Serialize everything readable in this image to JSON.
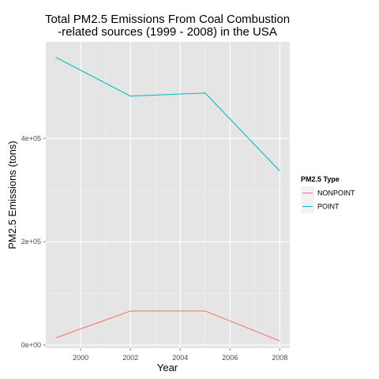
{
  "chart_data": {
    "type": "line",
    "title_lines": [
      "Total PM2.5 Emissions From Coal Combustion",
      "-related sources (1999 - 2008) in the USA"
    ],
    "xlabel": "Year",
    "ylabel": "PM2.5 Emissions (tons)",
    "x": [
      1999,
      2002,
      2005,
      2008
    ],
    "xlim": [
      1998.6,
      2008.4
    ],
    "ylim": [
      -6000,
      587000
    ],
    "x_ticks": [
      2000,
      2002,
      2004,
      2006,
      2008
    ],
    "x_tick_labels": [
      "2000",
      "2002",
      "2004",
      "2006",
      "2008"
    ],
    "y_ticks": [
      0,
      200000,
      400000
    ],
    "y_tick_labels": [
      "0e+00",
      "2e+05",
      "4e+05"
    ],
    "grid": true,
    "legend_position": "right",
    "legend_title": "PM2.5 Type",
    "series": [
      {
        "name": "NONPOINT",
        "color": "#F8766D",
        "values": [
          14000,
          66000,
          66000,
          8000
        ]
      },
      {
        "name": "POINT",
        "color": "#00BFC4",
        "values": [
          557000,
          482000,
          488000,
          337000
        ]
      }
    ]
  }
}
